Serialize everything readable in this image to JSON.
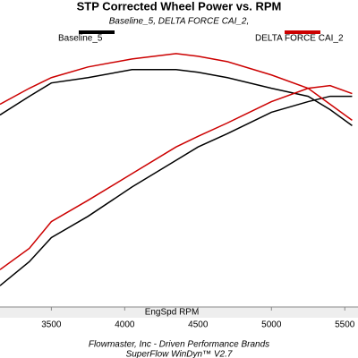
{
  "chart_data": {
    "type": "line",
    "title": "STP Corrected Wheel Power vs. RPM",
    "subtitle": "Baseline_5, DELTA FORCE CAI_2,",
    "x_label": "EngSpd RPM",
    "footer": [
      "Flowmaster, Inc - Driven Performance Brands",
      "SuperFlow WinDyn™ V2.7"
    ],
    "x": [
      3150,
      3350,
      3500,
      3750,
      4050,
      4350,
      4500,
      4700,
      5000,
      5250,
      5400,
      5550
    ],
    "series": [
      {
        "name": "Baseline_5",
        "color": "#000000",
        "curves": [
          [
            72,
            79,
            84,
            86,
            89,
            89,
            88,
            86,
            82,
            79,
            74,
            68
          ],
          [
            8,
            17,
            26,
            34,
            45,
            55,
            60,
            65,
            73,
            77,
            79,
            79
          ]
        ]
      },
      {
        "name": "DELTA FORCE CAI_2",
        "color": "#cc0000",
        "curves": [
          [
            76,
            82,
            86,
            90,
            93,
            95,
            94,
            92,
            87,
            82,
            76,
            70
          ],
          [
            14,
            22,
            32,
            40,
            50,
            60,
            64,
            69,
            77,
            82,
            83,
            80
          ]
        ]
      }
    ],
    "xlim": [
      3150,
      5590
    ],
    "ylim": [
      0,
      100
    ],
    "xticks": [
      3500,
      4000,
      4500,
      5000,
      5500
    ]
  }
}
